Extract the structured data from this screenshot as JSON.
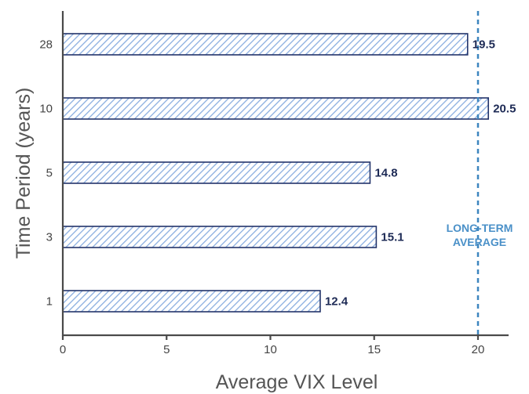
{
  "chart_data": {
    "type": "bar",
    "orientation": "horizontal",
    "categories": [
      "28",
      "10",
      "5",
      "3",
      "1"
    ],
    "values": [
      19.5,
      20.5,
      14.8,
      15.1,
      12.4
    ],
    "data_labels": [
      "19.5",
      "20.5",
      "14.8",
      "15.1",
      "12.4"
    ],
    "xlabel": "Average VIX Level",
    "ylabel": "Time Period (years)",
    "xlim": [
      0,
      21.5
    ],
    "xticks": [
      0,
      5,
      10,
      15,
      20
    ],
    "grid": false,
    "reference_line": {
      "value": 20,
      "style": "dashed",
      "label_lines": [
        "LONG-TERM",
        "AVERAGE"
      ]
    },
    "colors": {
      "bar_outline": "#23346a",
      "bar_hatch": "#8aaee0",
      "reference_line": "#3d86bf"
    }
  }
}
